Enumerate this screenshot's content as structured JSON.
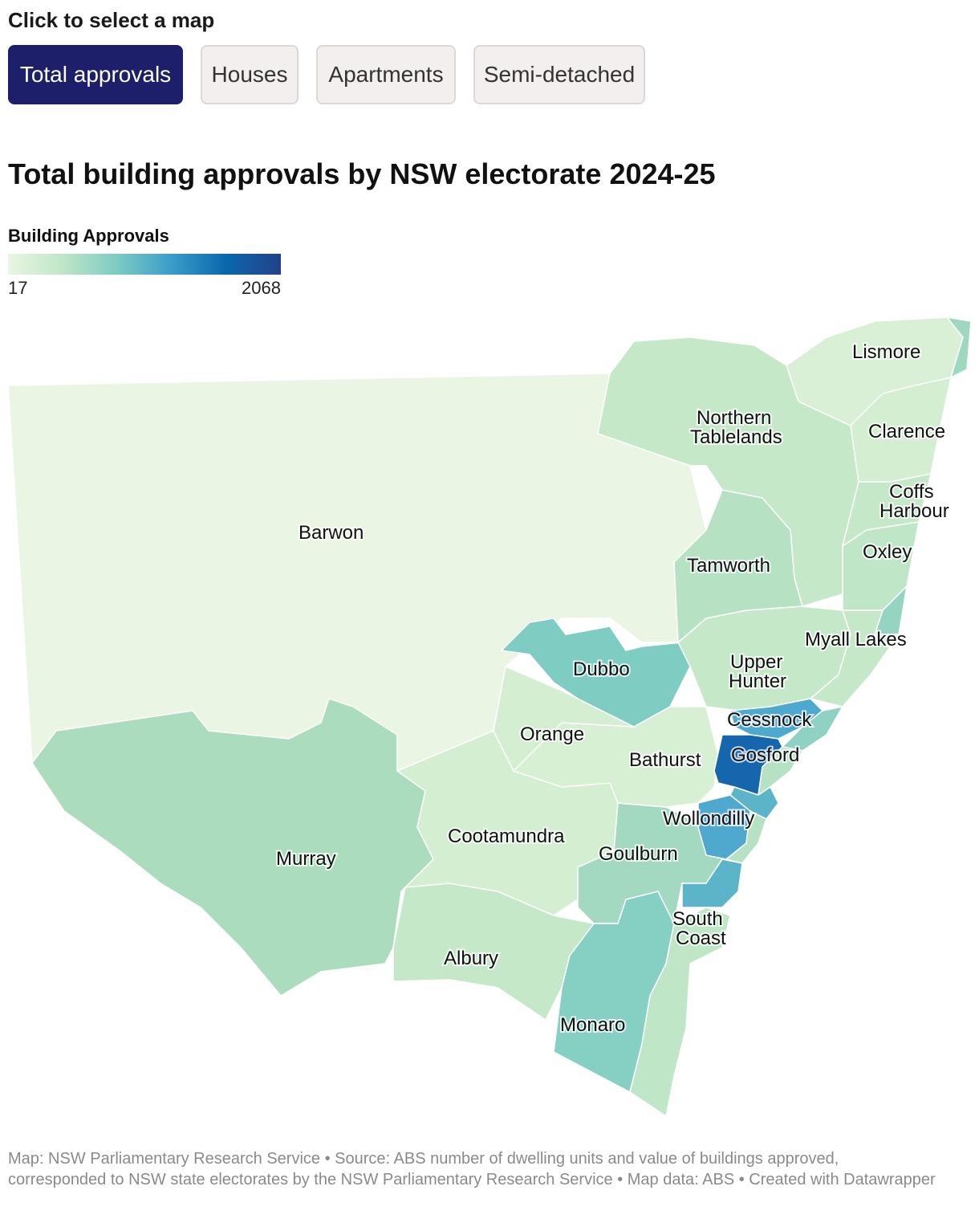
{
  "controls": {
    "label": "Click to select a map",
    "tabs": [
      {
        "label": "Total approvals",
        "selected": true
      },
      {
        "label": "Houses",
        "selected": false
      },
      {
        "label": "Apartments",
        "selected": false
      },
      {
        "label": "Semi-detached",
        "selected": false
      }
    ]
  },
  "title": "Total building approvals by NSW electorate 2024-25",
  "legend": {
    "title": "Building Approvals",
    "min": "17",
    "max": "2068",
    "colors": [
      "#eaf6e3",
      "#bfe6c7",
      "#7dcbc4",
      "#3a9cc9",
      "#0a67ad",
      "#234189"
    ]
  },
  "map": {
    "region_labels": [
      "Lismore",
      "Northern Tablelands",
      "Clarence",
      "Coffs Harbour",
      "Barwon",
      "Tamworth",
      "Oxley",
      "Myall Lakes",
      "Dubbo",
      "Upper Hunter",
      "Cessnock",
      "Orange",
      "Gosford",
      "Bathurst",
      "Wollondilly",
      "Cootamundra",
      "Murray",
      "Goulburn",
      "South Coast",
      "Albury",
      "Monaro"
    ]
  },
  "footer": "Map: NSW Parliamentary Research Service • Source: ABS number of dwelling units and value of buildings approved, corresponded to NSW state electorates by the NSW Parliamentary Research Service • Map data: ABS • Created with Datawrapper"
}
